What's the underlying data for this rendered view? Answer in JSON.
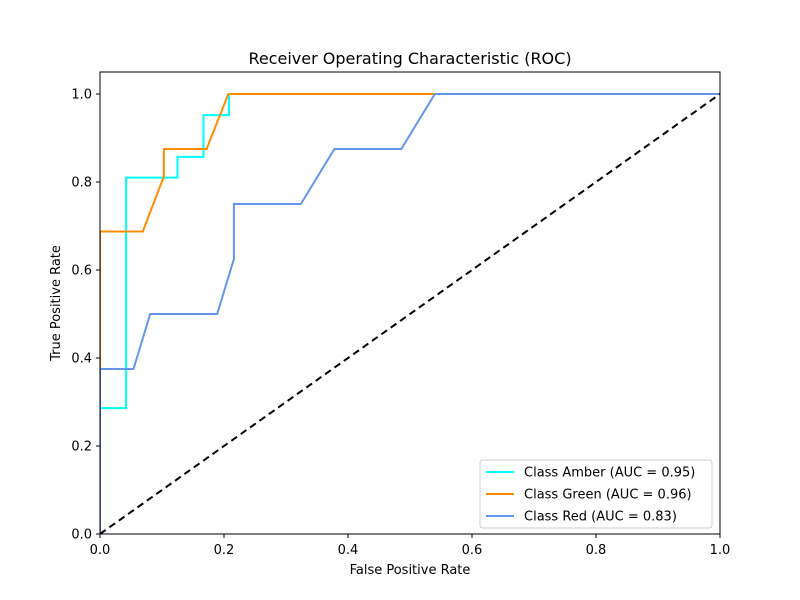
{
  "chart_data": {
    "type": "line",
    "title": "Receiver Operating Characteristic (ROC)",
    "xlabel": "False Positive Rate",
    "ylabel": "True Positive Rate",
    "xlim": [
      0.0,
      1.0
    ],
    "ylim": [
      0.0,
      1.05
    ],
    "xticks": [
      0.0,
      0.2,
      0.4,
      0.6,
      0.8,
      1.0
    ],
    "yticks": [
      0.0,
      0.2,
      0.4,
      0.6,
      0.8,
      1.0
    ],
    "xtick_labels": [
      "0.0",
      "0.2",
      "0.4",
      "0.6",
      "0.8",
      "1.0"
    ],
    "ytick_labels": [
      "0.0",
      "0.2",
      "0.4",
      "0.6",
      "0.8",
      "1.0"
    ],
    "grid": false,
    "legend_position": "lower-right",
    "series": [
      {
        "name": "Class Amber (AUC = 0.95)",
        "color": "#00ffff",
        "style": "solid",
        "x": [
          0.0,
          0.0,
          0.0,
          0.042,
          0.042,
          0.125,
          0.125,
          0.167,
          0.167,
          0.208,
          0.208,
          1.0
        ],
        "y": [
          0.0,
          0.048,
          0.286,
          0.286,
          0.81,
          0.81,
          0.857,
          0.857,
          0.952,
          0.952,
          1.0,
          1.0
        ]
      },
      {
        "name": "Class Green (AUC = 0.96)",
        "color": "#ff8c00",
        "style": "solid",
        "x": [
          0.0,
          0.0,
          0.069,
          0.103,
          0.103,
          0.172,
          0.207,
          0.207,
          0.54,
          1.0
        ],
        "y": [
          0.0,
          0.6875,
          0.6875,
          0.8125,
          0.875,
          0.875,
          1.0,
          1.0,
          1.0,
          1.0
        ],
        "note_hidden": ""
      },
      {
        "name": "Class Red (AUC = 0.83)",
        "color": "#6495ed",
        "style": "solid",
        "x": [
          0.0,
          0.0,
          0.054,
          0.081,
          0.189,
          0.216,
          0.216,
          0.324,
          0.378,
          0.486,
          0.54,
          1.0
        ],
        "y": [
          0.0,
          0.375,
          0.375,
          0.5,
          0.5,
          0.625,
          0.75,
          0.75,
          0.875,
          0.875,
          1.0,
          1.0
        ]
      },
      {
        "name": "",
        "color": "#000000",
        "style": "dashed",
        "x": [
          0.0,
          1.0
        ],
        "y": [
          0.0,
          1.0
        ]
      }
    ]
  }
}
